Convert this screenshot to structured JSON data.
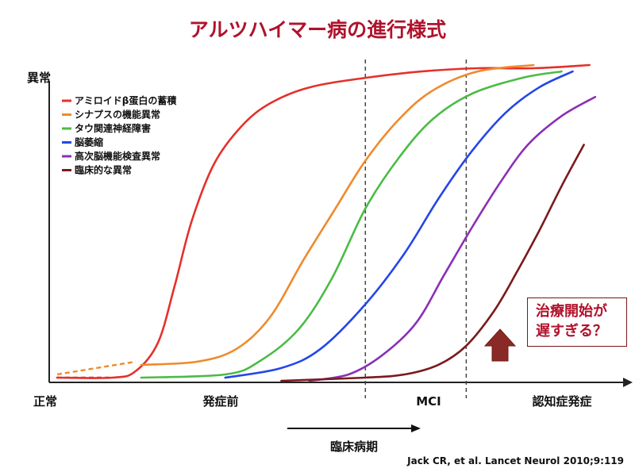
{
  "chart_data": {
    "type": "line",
    "title": "アルツハイマー病の進行様式",
    "ylabel_top": "異常",
    "xlabel_origin": "正常",
    "stage_labels": [
      "発症前",
      "MCI",
      "認知症発症"
    ],
    "arrow_label": "臨床病期",
    "xlim": [
      0,
      100
    ],
    "ylim": [
      0,
      100
    ],
    "stage_boundaries": [
      55,
      73
    ],
    "series": [
      {
        "name": "アミロイドβ蛋白の蓄積",
        "color": "#e4312b",
        "points": [
          [
            0,
            1
          ],
          [
            10,
            1
          ],
          [
            14,
            3
          ],
          [
            18,
            12
          ],
          [
            21,
            30
          ],
          [
            24,
            50
          ],
          [
            28,
            68
          ],
          [
            33,
            80
          ],
          [
            38,
            87
          ],
          [
            45,
            92
          ],
          [
            55,
            95
          ],
          [
            65,
            97
          ],
          [
            75,
            98
          ],
          [
            85,
            98
          ],
          [
            95,
            99
          ]
        ]
      },
      {
        "name": "シナプスの機能異常",
        "color": "#ef8a2c",
        "points": [
          [
            15,
            5
          ],
          [
            25,
            6
          ],
          [
            32,
            10
          ],
          [
            38,
            20
          ],
          [
            44,
            38
          ],
          [
            50,
            55
          ],
          [
            55,
            69
          ],
          [
            61,
            82
          ],
          [
            67,
            91
          ],
          [
            75,
            97
          ],
          [
            85,
            99
          ]
        ]
      },
      {
        "name": "タウ関連神経障害",
        "color": "#4cbb45",
        "points": [
          [
            15,
            1
          ],
          [
            30,
            2
          ],
          [
            36,
            6
          ],
          [
            43,
            16
          ],
          [
            49,
            32
          ],
          [
            55,
            54
          ],
          [
            61,
            70
          ],
          [
            67,
            82
          ],
          [
            74,
            90
          ],
          [
            83,
            95
          ],
          [
            90,
            97
          ]
        ]
      },
      {
        "name": "脳萎縮",
        "color": "#2446e8",
        "points": [
          [
            30,
            1
          ],
          [
            40,
            4
          ],
          [
            47,
            10
          ],
          [
            55,
            24
          ],
          [
            62,
            40
          ],
          [
            68,
            57
          ],
          [
            74,
            72
          ],
          [
            80,
            84
          ],
          [
            86,
            92
          ],
          [
            92,
            97
          ]
        ]
      },
      {
        "name": "高次脳機能検査異常",
        "color": "#8b2fb5",
        "points": [
          [
            45,
            0
          ],
          [
            52,
            2
          ],
          [
            58,
            8
          ],
          [
            64,
            18
          ],
          [
            69,
            33
          ],
          [
            74,
            48
          ],
          [
            79,
            62
          ],
          [
            84,
            74
          ],
          [
            90,
            83
          ],
          [
            96,
            89
          ]
        ]
      },
      {
        "name": "臨床的な異常",
        "color": "#7a1a1c",
        "points": [
          [
            40,
            0
          ],
          [
            55,
            1
          ],
          [
            62,
            2
          ],
          [
            68,
            5
          ],
          [
            73,
            11
          ],
          [
            78,
            22
          ],
          [
            82,
            34
          ],
          [
            86,
            47
          ],
          [
            90,
            61
          ],
          [
            94,
            74
          ]
        ]
      }
    ]
  },
  "note": {
    "line1": "治療開始が",
    "line2": "遅すぎる？"
  },
  "citation": "Jack CR, et al. Lancet Neurol 2010;9:119"
}
